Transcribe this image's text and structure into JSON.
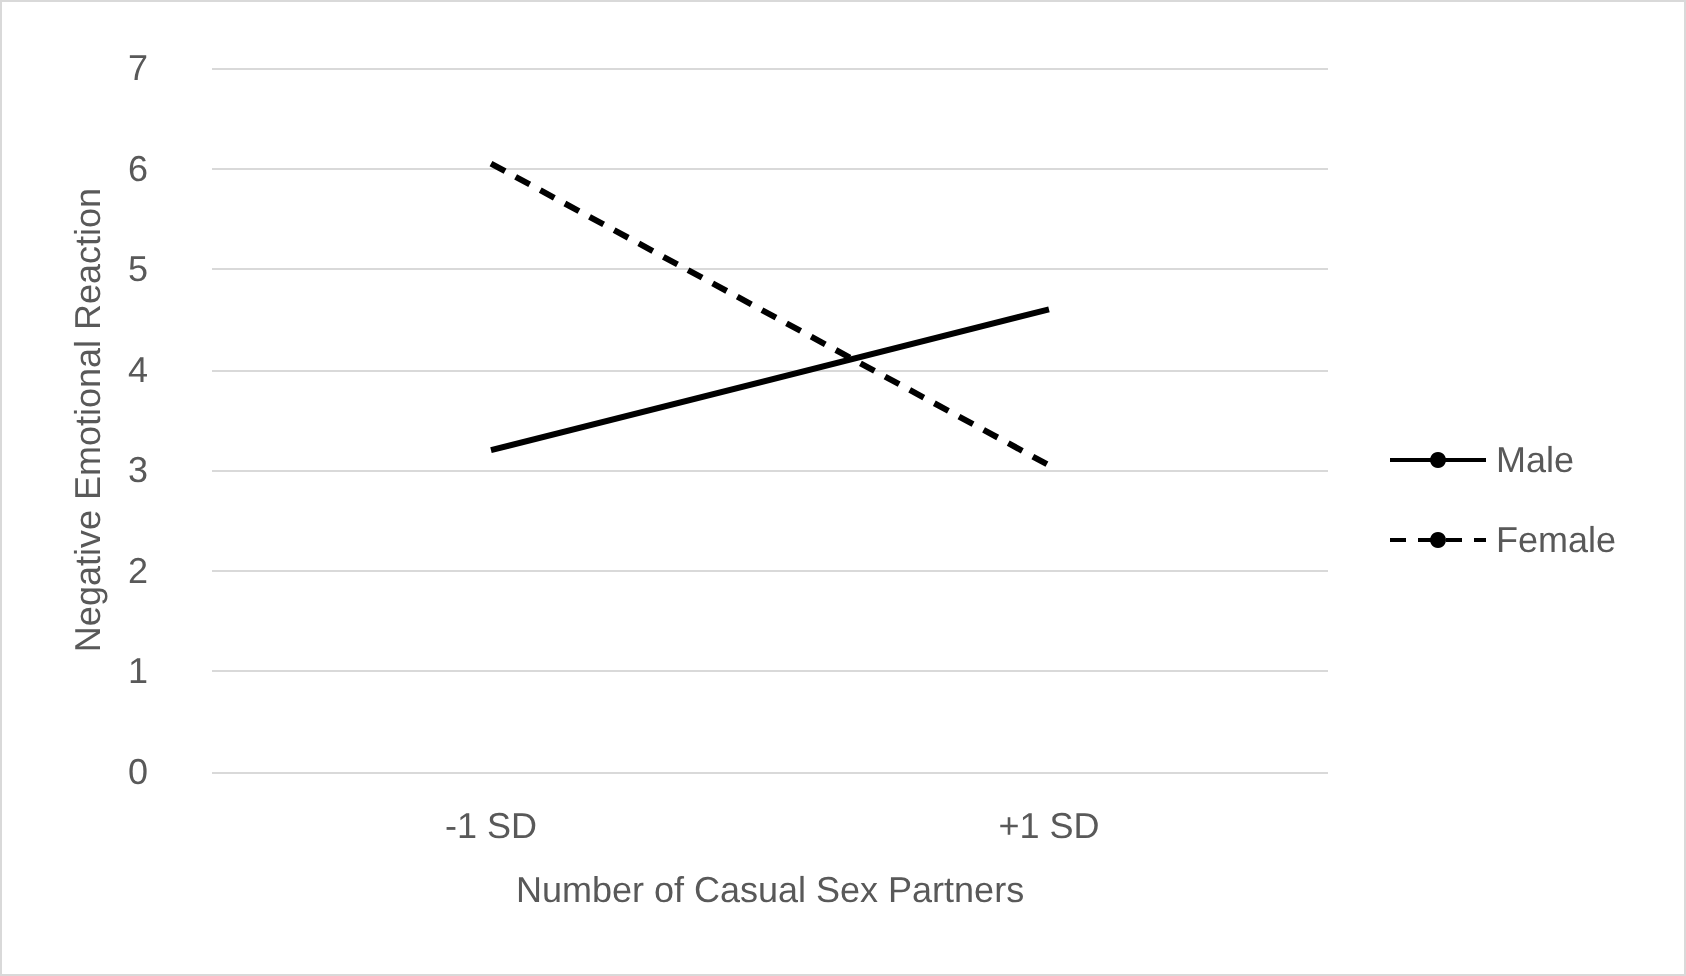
{
  "chart_data": {
    "type": "line",
    "xlabel": "Number of Casual Sex Partners",
    "ylabel": "Negative Emotional Reaction",
    "categories": [
      "-1 SD",
      "+1 SD"
    ],
    "series": [
      {
        "name": "Male",
        "color": "#000000",
        "values": [
          3.2,
          4.6
        ],
        "line_style": "solid"
      },
      {
        "name": "Female",
        "color": "#000000",
        "values": [
          6.05,
          3.05
        ],
        "line_style": "dashed"
      }
    ],
    "ylim": [
      0,
      7
    ],
    "yticks": [
      0,
      1,
      2,
      3,
      4,
      5,
      6,
      7
    ],
    "grid": "y",
    "legend": "right",
    "marker": "none"
  }
}
